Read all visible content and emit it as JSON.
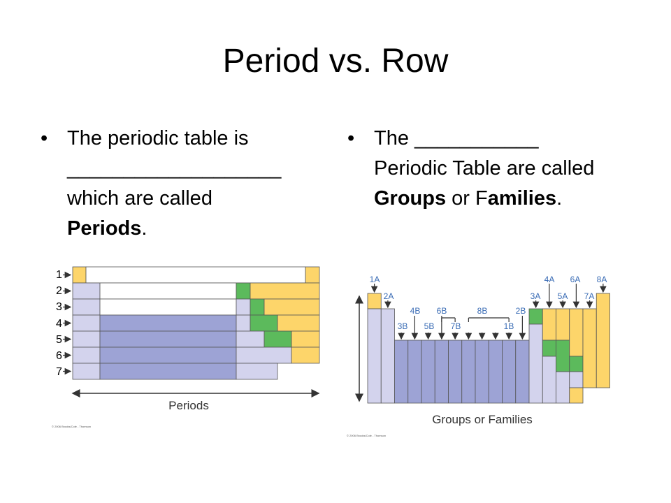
{
  "slide": {
    "title": "Period vs. Row",
    "bullet_char": "•"
  },
  "left_bullet": {
    "line1": "The periodic table is",
    "blank": "___________________",
    "line3": "which are called",
    "bold": "Periods",
    "end": "."
  },
  "right_bullet": {
    "line1_a": "The",
    "blank": "___________",
    "line2": "Periodic Table are called",
    "bold1": "Groups",
    "mid": " or F",
    "bold2": "amilies",
    "end": "."
  },
  "periods_figure": {
    "row_labels": [
      "1",
      "2",
      "3",
      "4",
      "5",
      "6",
      "7"
    ],
    "axis_label": "Periods",
    "credit": "© 2006 Brooks/Cole - Thomson"
  },
  "groups_figure": {
    "group_labels": {
      "g1A": "1A",
      "g2A": "2A",
      "g3A": "3A",
      "g4A": "4A",
      "g5A": "5A",
      "g6A": "6A",
      "g7A": "7A",
      "g8A": "8A",
      "g3B": "3B",
      "g4B": "4B",
      "g5B": "5B",
      "g6B": "6B",
      "g7B": "7B",
      "g8B": "8B",
      "g1B": "1B",
      "g2B": "2B"
    },
    "axis_label": "Groups or Families",
    "credit": "© 2006 Brooks/Cole - Thomson"
  },
  "colors": {
    "yellow": "#fdd56a",
    "green": "#5cba5c",
    "lavender": "#d3d3ed",
    "blue": "#9da3d5",
    "arrow": "#333333",
    "label_blue": "#3a6cb5"
  }
}
